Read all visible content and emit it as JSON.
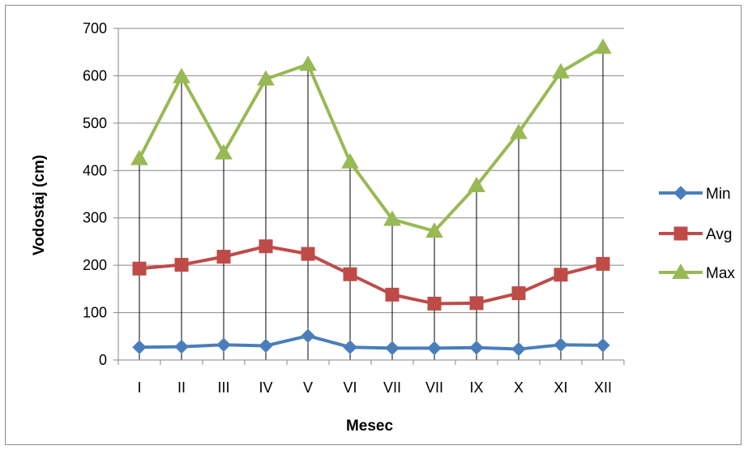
{
  "chart_data": {
    "type": "line",
    "title": "",
    "xlabel": "Mesec",
    "ylabel": "Vodostaj (cm)",
    "categories": [
      "I",
      "II",
      "III",
      "IV",
      "V",
      "VI",
      "VII",
      "VII",
      "IX",
      "X",
      "XI",
      "XII"
    ],
    "ylim": [
      0,
      700
    ],
    "yticks": [
      "0",
      "100",
      "200",
      "300",
      "400",
      "500",
      "600",
      "700"
    ],
    "grid": "horizontal",
    "drop_lines": true,
    "legend": "right",
    "series": [
      {
        "name": "Min",
        "color": "#4a7ebb",
        "marker": "diamond",
        "values": [
          27,
          28,
          32,
          30,
          51,
          27,
          25,
          25,
          26,
          23,
          32,
          31
        ]
      },
      {
        "name": "Avg",
        "color": "#be4b48",
        "marker": "square",
        "values": [
          193,
          201,
          218,
          240,
          224,
          181,
          138,
          119,
          120,
          141,
          180,
          203
        ]
      },
      {
        "name": "Max",
        "color": "#98b954",
        "marker": "triangle",
        "values": [
          425,
          598,
          437,
          593,
          624,
          418,
          297,
          272,
          368,
          480,
          608,
          660
        ]
      }
    ]
  }
}
